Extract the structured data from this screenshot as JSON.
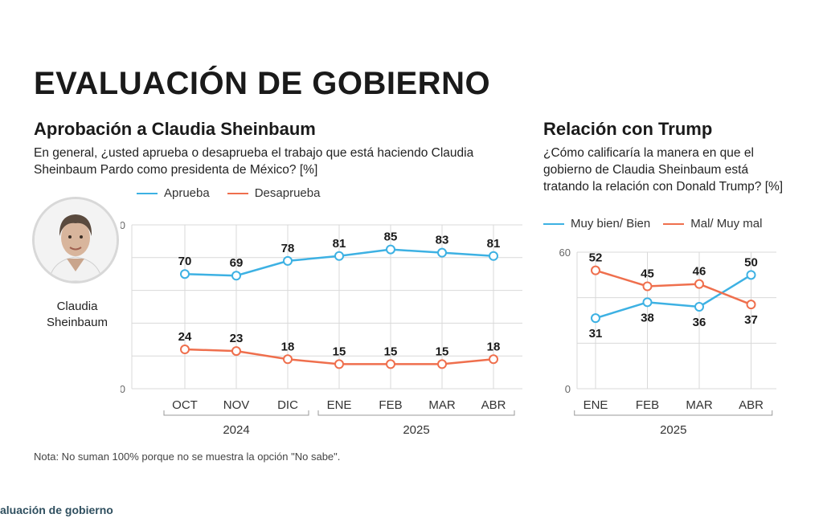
{
  "main_title": "EVALUACIÓN DE GOBIERNO",
  "colors": {
    "blue": "#3db1e3",
    "orange": "#ef6f4d",
    "grid": "#d9d9d9",
    "text": "#1a1a1a"
  },
  "approval": {
    "title": "Aprobación a Claudia Sheinbaum",
    "question": "En general, ¿usted aprueba o desaprueba el trabajo que está haciendo Claudia Sheinbaum Pardo como presidenta de México? [%]",
    "photo_name": "Claudia Sheinbaum",
    "photo_icon": "portrait-icon"
  },
  "trump": {
    "title": "Relación con Trump",
    "question": "¿Cómo calificaría la manera en que el gobierno de Claudia Sheinbaum está tratando la relación con Donald Trump? [%]"
  },
  "chart_data": [
    {
      "type": "line",
      "categories": [
        "OCT",
        "NOV",
        "DIC",
        "ENE",
        "FEB",
        "MAR",
        "ABR"
      ],
      "year_groups": [
        {
          "label": "2024",
          "from": "OCT",
          "to": "DIC"
        },
        {
          "label": "2025",
          "from": "ENE",
          "to": "ABR"
        }
      ],
      "series": [
        {
          "name": "Aprueba",
          "color": "#3db1e3",
          "values": [
            70,
            69,
            78,
            81,
            85,
            83,
            81
          ]
        },
        {
          "name": "Desaprueba",
          "color": "#ef6f4d",
          "values": [
            24,
            23,
            18,
            15,
            15,
            15,
            18
          ]
        }
      ],
      "ylim": [
        0,
        100
      ],
      "yticks": [
        "0",
        "100"
      ],
      "legend_position": "top-left",
      "grid": true
    },
    {
      "type": "line",
      "categories": [
        "ENE",
        "FEB",
        "MAR",
        "ABR"
      ],
      "year_groups": [
        {
          "label": "2025",
          "from": "ENE",
          "to": "ABR"
        }
      ],
      "series": [
        {
          "name": "Muy bien/ Bien",
          "color": "#3db1e3",
          "values": [
            31,
            38,
            36,
            50
          ]
        },
        {
          "name": "Mal/ Muy mal",
          "color": "#ef6f4d",
          "values": [
            52,
            45,
            46,
            37
          ]
        }
      ],
      "ylim": [
        0,
        60
      ],
      "yticks": [
        "0",
        "60"
      ],
      "legend_position": "top-left",
      "grid": true
    }
  ],
  "note": "Nota: No suman 100% porque no se muestra la opción \"No sabe\".",
  "footer": "aluación de gobierno"
}
